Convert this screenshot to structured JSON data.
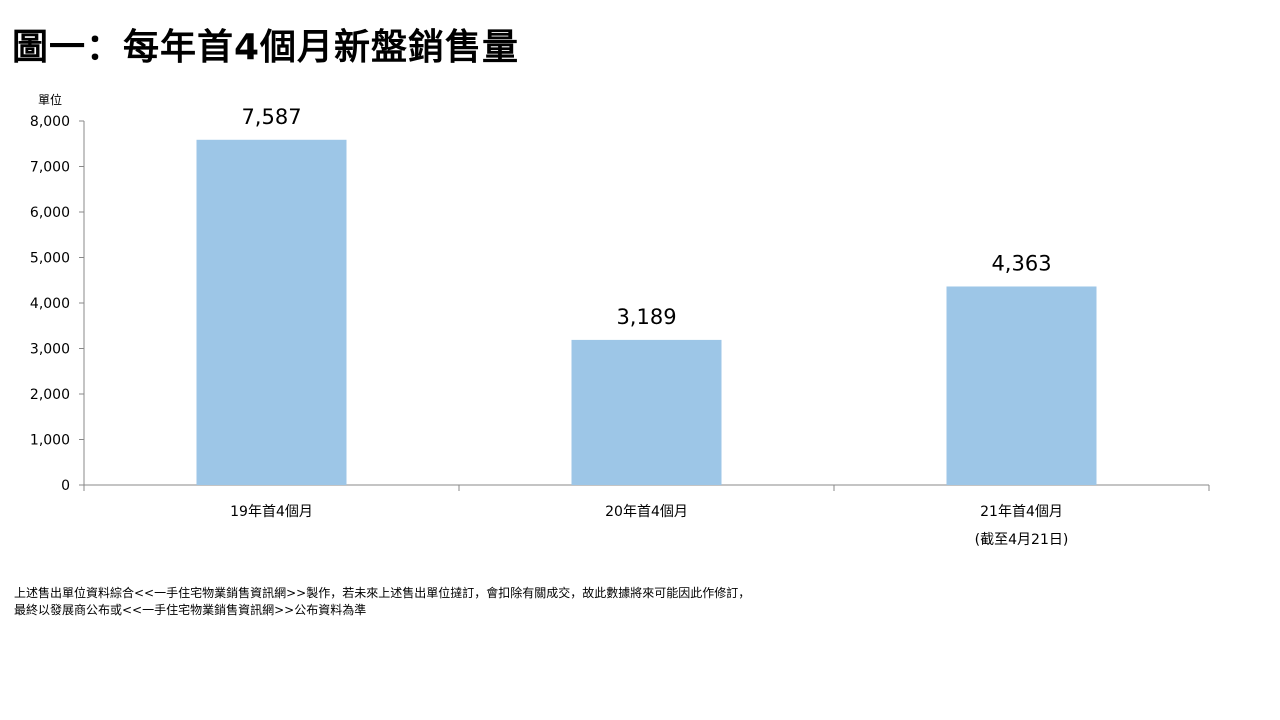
{
  "title": "圖一：每年首4個月新盤銷售量",
  "chart_data": {
    "type": "bar",
    "ylabel": "單位",
    "ylim": [
      0,
      8000
    ],
    "yticks": [
      "0",
      "1,000",
      "2,000",
      "3,000",
      "4,000",
      "5,000",
      "6,000",
      "7,000",
      "8,000"
    ],
    "categories": [
      {
        "line1": "19年首4個月",
        "line2": ""
      },
      {
        "line1": "20年首4個月",
        "line2": ""
      },
      {
        "line1": "21年首4個月",
        "line2": "(截至4月21日)"
      }
    ],
    "values": [
      7587,
      3189,
      4363
    ],
    "value_labels": [
      "7,587",
      "3,189",
      "4,363"
    ],
    "bar_color": "#9dc6e7",
    "grid": false,
    "legend": "none"
  },
  "footnotes": [
    "上述售出單位資料綜合<<一手住宅物業銷售資訊網>>製作，若未來上述售出單位撻訂，會扣除有關成交，故此數據將來可能因此作修訂，",
    "最終以發展商公布或<<一手住宅物業銷售資訊網>>公布資料為準"
  ]
}
